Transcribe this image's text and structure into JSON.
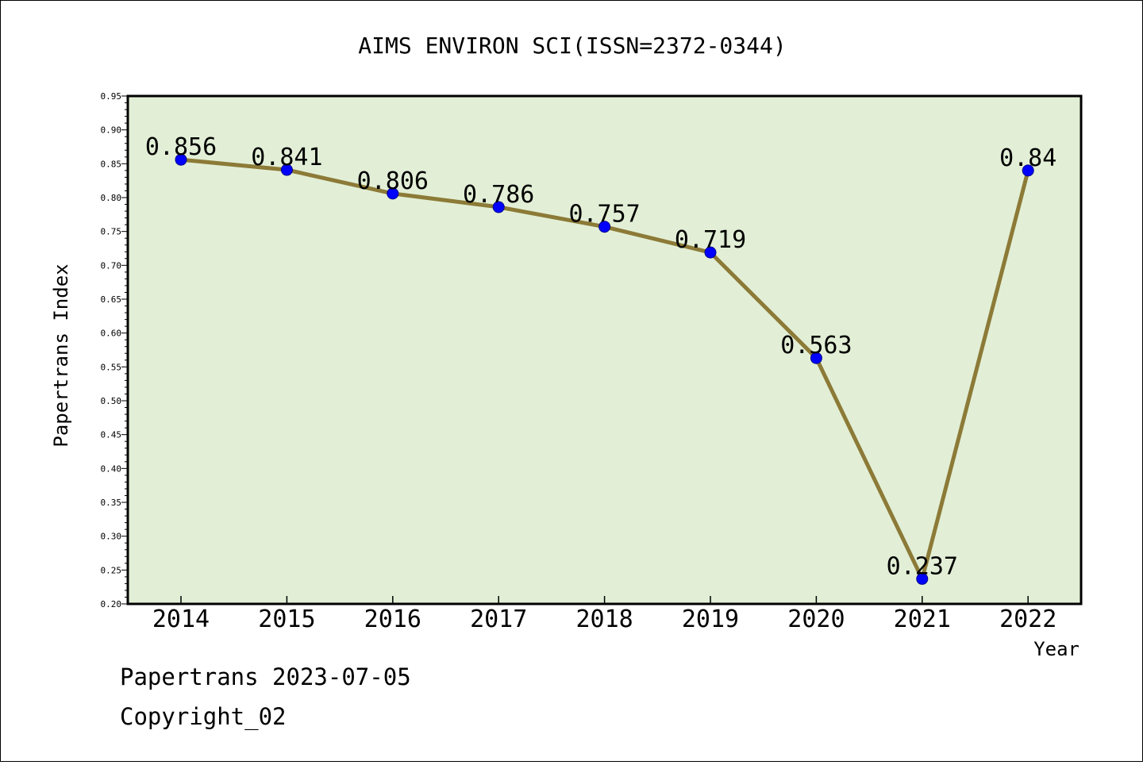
{
  "chart_data": {
    "type": "line",
    "title": "AIMS ENVIRON SCI(ISSN=2372-0344)",
    "xlabel": "Year",
    "ylabel": "Papertrans Index",
    "categories": [
      "2014",
      "2015",
      "2016",
      "2017",
      "2018",
      "2019",
      "2020",
      "2021",
      "2022"
    ],
    "series": [
      {
        "values": [
          0.856,
          0.841,
          0.806,
          0.786,
          0.757,
          0.719,
          0.563,
          0.237,
          0.84
        ],
        "data_labels": [
          "0.856",
          "0.841",
          "0.806",
          "0.786",
          "0.757",
          "0.719",
          "0.563",
          "0.237",
          "0.84"
        ]
      }
    ],
    "ylim": [
      0.2,
      0.95
    ],
    "yticks": [
      "0.20",
      "0.25",
      "0.30",
      "0.35",
      "0.40",
      "0.45",
      "0.50",
      "0.55",
      "0.60",
      "0.65",
      "0.70",
      "0.75",
      "0.80",
      "0.85",
      "0.90",
      "0.95"
    ],
    "grid": false,
    "legend": "none",
    "colors": {
      "plot_background": "#e2efd6",
      "line": "#8c7a37",
      "marker": "#0000ff"
    }
  },
  "footer": {
    "line1": "Papertrans 2023-07-05",
    "line2": "Copyright_02"
  }
}
